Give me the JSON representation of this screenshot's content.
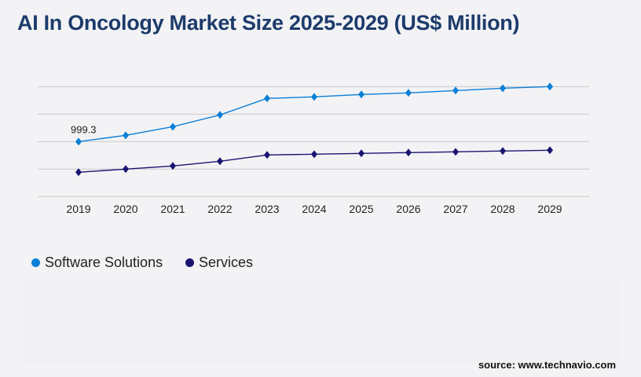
{
  "title": "AI In Oncology Market Size 2025-2029 (US$ Million)",
  "source": "source: www.technavio.com",
  "chart_data": {
    "type": "line",
    "title": "AI In Oncology Market Size 2025-2029 (US$ Million)",
    "categories": [
      "2019",
      "2020",
      "2021",
      "2022",
      "2023",
      "2024",
      "2025",
      "2026",
      "2027",
      "2028",
      "2029"
    ],
    "ylim": [
      0,
      2000
    ],
    "grid": true,
    "legend_position": "bottom-left",
    "series": [
      {
        "name": "Software Solutions",
        "color": "#0a7fd6",
        "values": [
          999.3,
          1114,
          1271,
          1486,
          1786,
          1814,
          1857,
          1886,
          1929,
          1971,
          2000
        ]
      },
      {
        "name": "Services",
        "color": "#1a1570",
        "values": [
          443,
          500,
          557,
          643,
          757,
          771,
          786,
          800,
          814,
          829,
          843
        ]
      }
    ],
    "annotations": [
      {
        "series": 0,
        "index": 0,
        "text": "999.3"
      }
    ]
  }
}
